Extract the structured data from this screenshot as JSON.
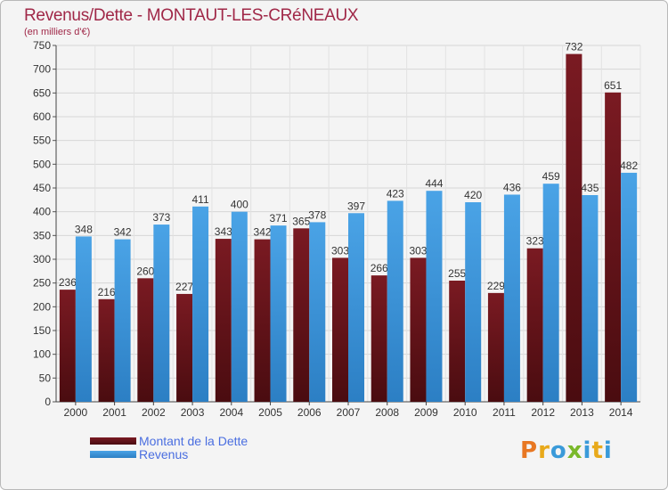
{
  "header": {
    "title": "Revenus/Dette - MONTAUT-LES-CRéNEAUX",
    "subtitle": "(en milliers d'€)"
  },
  "colors": {
    "debt": "#7a1a22",
    "debt_dark": "#4a0c10",
    "revenue": "#4aa3e6",
    "revenue_dark": "#2c7fc4",
    "title": "#a02848",
    "legend_text": "#4a6ee0"
  },
  "legend": {
    "items": [
      {
        "label": "Montant de la Dette",
        "color": "#7a1a22"
      },
      {
        "label": "Revenus",
        "color": "#4aa3e6"
      }
    ]
  },
  "logo": {
    "text": "Proxiti",
    "colors": [
      "#e87722",
      "#e8a91a",
      "#3a9ad9",
      "#7ab82a",
      "#3a9ad9",
      "#e8a91a",
      "#3a9ad9"
    ]
  },
  "chart_data": {
    "type": "bar",
    "title": "Revenus/Dette - MONTAUT-LES-CRéNEAUX",
    "subtitle": "(en milliers d'€)",
    "xlabel": "",
    "ylabel": "",
    "categories": [
      "2000",
      "2001",
      "2002",
      "2003",
      "2004",
      "2005",
      "2006",
      "2007",
      "2008",
      "2009",
      "2010",
      "2011",
      "2012",
      "2013",
      "2014"
    ],
    "series": [
      {
        "name": "Montant de la Dette",
        "values": [
          236,
          216,
          260,
          227,
          343,
          342,
          365,
          303,
          266,
          303,
          255,
          229,
          323,
          732,
          651
        ]
      },
      {
        "name": "Revenus",
        "values": [
          348,
          342,
          373,
          411,
          400,
          371,
          378,
          397,
          423,
          444,
          420,
          436,
          459,
          435,
          482
        ]
      }
    ],
    "ylim": [
      0,
      750
    ],
    "yticks": [
      0,
      50,
      100,
      150,
      200,
      250,
      300,
      350,
      400,
      450,
      500,
      550,
      600,
      650,
      700,
      750
    ],
    "grid": true,
    "legend_position": "bottom-left"
  }
}
